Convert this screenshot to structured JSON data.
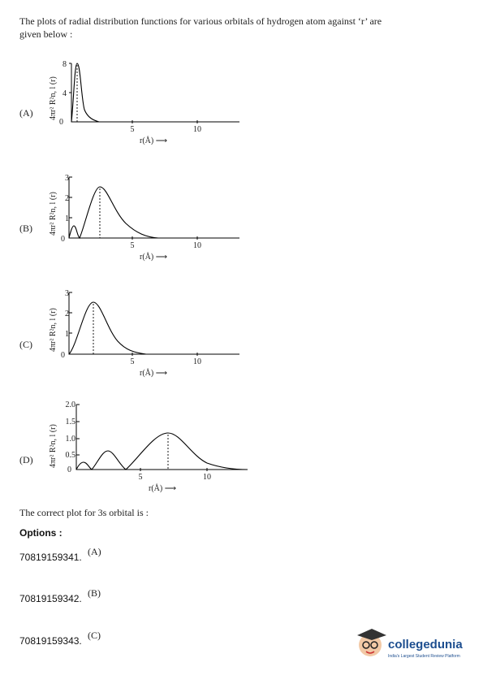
{
  "question": {
    "line1": "The plots of radial distribution functions for various orbitals of hydrogen atom against ‘r’ are",
    "line2": "given below :"
  },
  "plots": [
    {
      "label": "(A)",
      "y_label": "4πr² R²n, l (r)",
      "y_ticks": [
        "0",
        "4",
        "8"
      ],
      "x_ticks": [
        "5",
        "10"
      ],
      "x_label": "r(Å) ⟶"
    },
    {
      "label": "(B)",
      "y_label": "4πr² R²n, l (r)",
      "y_ticks": [
        "0",
        "1",
        "2",
        "3"
      ],
      "x_ticks": [
        "5",
        "10"
      ],
      "x_label": "r(Å) ⟶"
    },
    {
      "label": "(C)",
      "y_label": "4πr² R²n, l (r)",
      "y_ticks": [
        "0",
        "1",
        "2",
        "3"
      ],
      "x_ticks": [
        "5",
        "10"
      ],
      "x_label": "r(Å) ⟶"
    },
    {
      "label": "(D)",
      "y_label": "4πr² R²n, l (r)",
      "y_ticks": [
        "0",
        "0.5",
        "1.0",
        "1.5",
        "2.0"
      ],
      "x_ticks": [
        "5",
        "10"
      ],
      "x_label": "r(Å) ⟶"
    }
  ],
  "prompt": "The correct plot for 3s orbital is :",
  "options_heading": "Options :",
  "options": [
    {
      "id": "70819159341.",
      "label": "(A)"
    },
    {
      "id": "70819159342.",
      "label": "(B)"
    },
    {
      "id": "70819159343.",
      "label": "(C)"
    }
  ],
  "brand": {
    "name": "collegedunia",
    "tagline": "India's Largest Student Review Platform"
  }
}
